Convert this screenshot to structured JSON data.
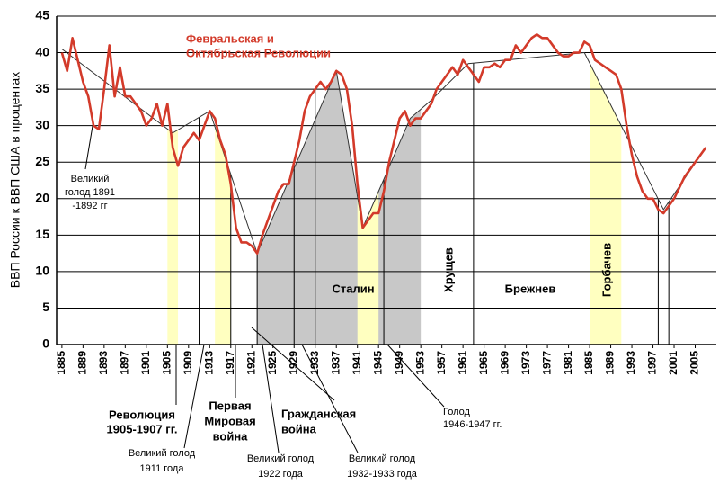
{
  "chart_data": {
    "type": "line",
    "y_label": "ВВП России к ВВП США в процентах",
    "x": [
      1885,
      1886,
      1887,
      1888,
      1889,
      1890,
      1891,
      1892,
      1893,
      1894,
      1895,
      1896,
      1897,
      1898,
      1899,
      1900,
      1901,
      1902,
      1903,
      1904,
      1905,
      1906,
      1907,
      1908,
      1909,
      1910,
      1911,
      1912,
      1913,
      1914,
      1915,
      1916,
      1917,
      1918,
      1919,
      1920,
      1921,
      1922,
      1923,
      1924,
      1925,
      1926,
      1927,
      1928,
      1929,
      1930,
      1931,
      1932,
      1933,
      1934,
      1935,
      1936,
      1937,
      1938,
      1939,
      1940,
      1941,
      1942,
      1943,
      1944,
      1945,
      1946,
      1947,
      1948,
      1949,
      1950,
      1951,
      1952,
      1953,
      1954,
      1955,
      1956,
      1957,
      1958,
      1959,
      1960,
      1961,
      1962,
      1963,
      1964,
      1965,
      1966,
      1967,
      1968,
      1969,
      1970,
      1971,
      1972,
      1973,
      1974,
      1975,
      1976,
      1977,
      1978,
      1979,
      1980,
      1981,
      1982,
      1983,
      1984,
      1985,
      1986,
      1987,
      1988,
      1989,
      1990,
      1991,
      1992,
      1993,
      1994,
      1995,
      1996,
      1997,
      1998,
      1999,
      2000,
      2001,
      2002,
      2003,
      2004,
      2005,
      2006,
      2007
    ],
    "series": [
      {
        "color": "#d33a2a",
        "values": [
          40,
          37.5,
          42,
          39,
          36,
          34,
          30,
          29.5,
          35,
          41,
          34,
          38,
          34,
          34,
          33,
          32,
          30,
          31,
          33,
          30,
          33,
          27,
          24.5,
          27,
          28,
          29,
          28,
          30,
          32,
          31,
          28,
          26,
          22,
          16,
          14,
          14,
          13.5,
          12.5,
          15,
          17,
          19,
          21,
          22,
          22,
          25,
          28,
          32,
          34,
          35,
          36,
          35,
          36,
          37.5,
          37,
          35,
          30,
          22,
          16,
          17,
          18,
          18,
          21,
          25,
          28,
          31,
          32,
          30,
          31,
          31,
          32,
          33,
          35,
          36,
          37,
          38,
          37,
          39,
          38,
          37,
          36,
          38,
          38,
          38.5,
          38,
          39,
          39,
          41,
          40,
          41,
          42,
          42.5,
          42,
          42,
          41,
          40,
          39.5,
          39.5,
          40,
          40,
          41.5,
          41,
          39,
          38.5,
          38,
          37.5,
          37,
          35,
          30,
          26,
          23,
          21,
          20,
          20,
          18.5,
          18,
          19,
          20,
          21.5,
          23,
          24,
          25,
          26,
          27
        ]
      }
    ],
    "trend": {
      "color": "#333333",
      "x": [
        1885,
        1906,
        1913,
        1922,
        1937,
        1942,
        1951,
        1955,
        1962,
        1984,
        1999,
        2007
      ],
      "values": [
        40.5,
        29,
        32,
        12.5,
        37.5,
        16,
        31,
        33.5,
        38.5,
        40,
        18.5,
        27
      ]
    },
    "regions": [
      {
        "start": 1922,
        "end": 1953,
        "color": "#c8c8c8"
      },
      {
        "start": 1905,
        "end": 1907,
        "color": "#ffffc0"
      },
      {
        "start": 1914,
        "end": 1917,
        "color": "#ffffc0"
      },
      {
        "start": 1941,
        "end": 1945,
        "color": "#ffffc0"
      },
      {
        "start": 1985,
        "end": 1991,
        "color": "#ffffc0"
      }
    ],
    "markers": [
      1911,
      1917,
      1922,
      1929,
      1933,
      1946,
      1963,
      1998,
      2000
    ],
    "xlim": [
      1884,
      2009
    ],
    "ylim": [
      0,
      45
    ],
    "yticks": [
      0,
      5,
      10,
      15,
      20,
      25,
      30,
      35,
      40,
      45
    ],
    "xticks": [
      1885,
      1889,
      1893,
      1897,
      1901,
      1905,
      1909,
      1913,
      1917,
      1921,
      1925,
      1929,
      1933,
      1937,
      1941,
      1945,
      1949,
      1953,
      1957,
      1961,
      1965,
      1969,
      1973,
      1977,
      1981,
      1985,
      1989,
      1993,
      1997,
      2001,
      2005
    ],
    "grid": true,
    "annotations": [
      {
        "lines": [
          "Февральская и",
          "Октябрьская Революции"
        ]
      },
      {
        "lines": [
          "Великий",
          "голод 1891",
          "-1892 гг"
        ]
      },
      {
        "lines": [
          "Сталин"
        ]
      },
      {
        "lines": [
          "Хрущев"
        ]
      },
      {
        "lines": [
          "Брежнев"
        ]
      },
      {
        "lines": [
          "Горбачев"
        ]
      },
      {
        "lines": [
          "Революция",
          "1905-1907 гг."
        ]
      },
      {
        "lines": [
          "Первая",
          "Мировая",
          "война"
        ]
      },
      {
        "lines": [
          "Гражданская",
          "война"
        ]
      },
      {
        "lines": [
          "Голод",
          "1946-1947 гг."
        ]
      },
      {
        "lines": [
          "Великий голод",
          "1911 года"
        ]
      },
      {
        "lines": [
          "Великий голод",
          "1922 года"
        ]
      },
      {
        "lines": [
          "Великий голод",
          "1932-1933 года"
        ]
      }
    ]
  }
}
